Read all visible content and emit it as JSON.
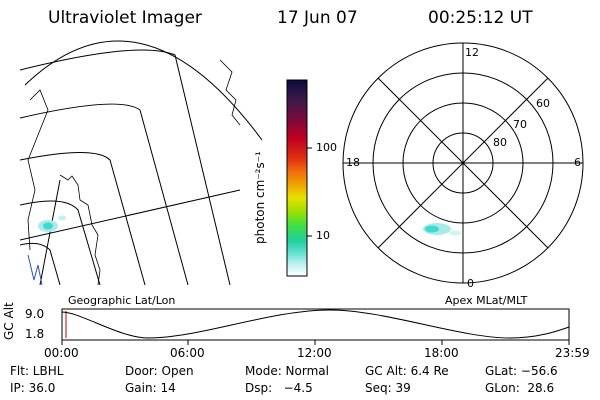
{
  "header": {
    "title": "Ultraviolet Imager",
    "date": "17 Jun 07",
    "time": "00:25:12 UT"
  },
  "colorbar": {
    "unit_label": "photon cm⁻²s⁻¹",
    "ticks": [
      "100",
      "10"
    ],
    "colors": [
      "#0a0a3a",
      "#3a1a4a",
      "#7a0a3a",
      "#c00020",
      "#e03010",
      "#f07010",
      "#f0a000",
      "#e8e000",
      "#a0e000",
      "#40e040",
      "#20d0a0",
      "#60e0d0",
      "#c0f0f0",
      "#ffffff"
    ]
  },
  "polar_plot": {
    "lat_labels": [
      "80",
      "70",
      "60"
    ],
    "mlt_labels": {
      "top": "12",
      "left": "18",
      "right": "6",
      "bottom": "0"
    }
  },
  "panel_labels": {
    "left": "Geographic Lat/Lon",
    "right": "Apex MLat/MLT"
  },
  "altitude_strip": {
    "axis_label": "GC Alt",
    "y_ticks": [
      "9.0",
      "1.8"
    ],
    "x_ticks": [
      "00:00",
      "06:00",
      "12:00",
      "18:00",
      "23:59"
    ]
  },
  "status": {
    "row1": {
      "flt": "Flt: LBHL",
      "door": "Door: Open",
      "mode": "Mode: Normal",
      "gc_alt": "GC Alt: 6.4 Re",
      "glat": "GLat: −56.6"
    },
    "row2": {
      "ip": "IP: 36.0",
      "gain": "Gain: 14",
      "dsp": "Dsp:   −4.5",
      "seq": "Seq: 39",
      "glon": "GLon:  28.6"
    }
  },
  "colors": {
    "auroral_teal": "#40d8d0",
    "auroral_light": "#a8ece8",
    "coast_blue": "#3050c0"
  }
}
